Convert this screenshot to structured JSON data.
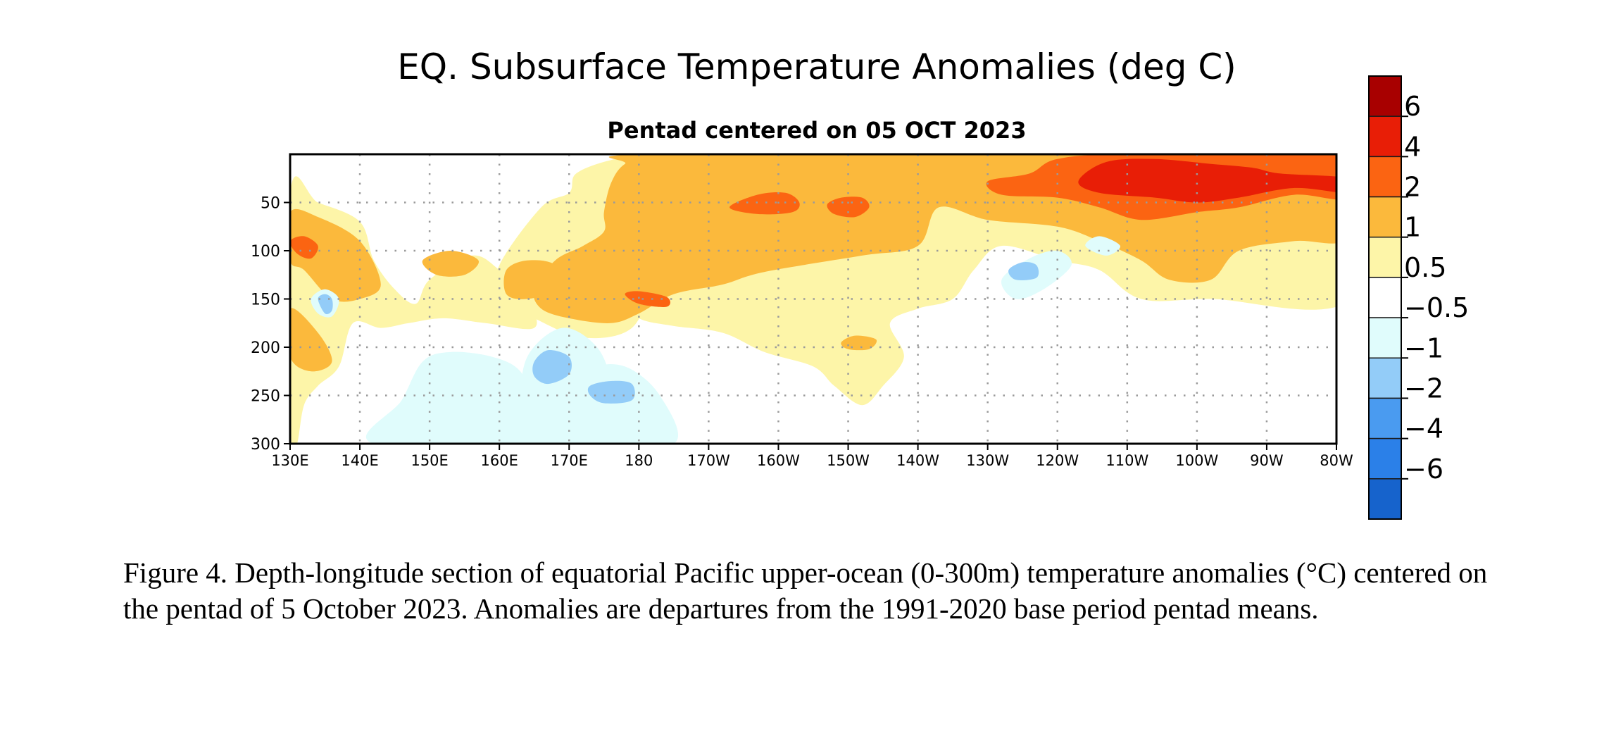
{
  "chart_data": {
    "type": "heatmap",
    "title": "EQ. Subsurface Temperature Anomalies (deg C)",
    "subtitle": "Pentad centered on 05 OCT 2023",
    "x_axis": {
      "ticks": [
        {
          "value": 130,
          "label": "130E"
        },
        {
          "value": 140,
          "label": "140E"
        },
        {
          "value": 150,
          "label": "150E"
        },
        {
          "value": 160,
          "label": "160E"
        },
        {
          "value": 170,
          "label": "170E"
        },
        {
          "value": 180,
          "label": "180"
        },
        {
          "value": 190,
          "label": "170W"
        },
        {
          "value": 200,
          "label": "160W"
        },
        {
          "value": 210,
          "label": "150W"
        },
        {
          "value": 220,
          "label": "140W"
        },
        {
          "value": 230,
          "label": "130W"
        },
        {
          "value": 240,
          "label": "120W"
        },
        {
          "value": 250,
          "label": "110W"
        },
        {
          "value": 260,
          "label": "100W"
        },
        {
          "value": 270,
          "label": "90W"
        },
        {
          "value": 280,
          "label": "80W"
        }
      ],
      "range": [
        130,
        280
      ]
    },
    "y_axis": {
      "ticks": [
        {
          "value": 50,
          "label": "50"
        },
        {
          "value": 100,
          "label": "100"
        },
        {
          "value": 150,
          "label": "150"
        },
        {
          "value": 200,
          "label": "200"
        },
        {
          "value": 250,
          "label": "250"
        },
        {
          "value": 300,
          "label": "300"
        }
      ],
      "range": [
        0,
        300
      ],
      "inverted": true
    },
    "grid": "dotted",
    "colorbar": {
      "placement": "right",
      "colors": [
        "#1663cc",
        "#2b80e8",
        "#4a9bf0",
        "#93ccf8",
        "#e0fcfc",
        "#ffffff",
        "#fdf5a8",
        "#fbb93c",
        "#fb6412",
        "#e81e06",
        "#a80000"
      ],
      "labels": [
        "−6",
        "−4",
        "−2",
        "−1",
        "−0.5",
        "0.5",
        "1",
        "2",
        "4",
        "6"
      ]
    },
    "regions": [
      {
        "level": 0.5,
        "points": [
          [
            177,
            120
          ],
          [
            176,
            40
          ],
          [
            178,
            18
          ],
          [
            181,
            0
          ],
          [
            228,
            0
          ],
          [
            282,
            0
          ],
          [
            282,
            150
          ],
          [
            262,
            150
          ],
          [
            252,
            150
          ],
          [
            246,
            120
          ],
          [
            240,
            110
          ],
          [
            232,
            95
          ],
          [
            228,
            120
          ],
          [
            225,
            150
          ],
          [
            220,
            160
          ],
          [
            216,
            175
          ],
          [
            218,
            210
          ],
          [
            215,
            240
          ],
          [
            212,
            260
          ],
          [
            208,
            240
          ],
          [
            205,
            220
          ],
          [
            198,
            205
          ],
          [
            192,
            185
          ],
          [
            185,
            178
          ],
          [
            180,
            170
          ],
          [
            178,
            150
          ]
        ]
      },
      {
        "level": 0.5,
        "points": [
          [
            160,
            115
          ],
          [
            166,
            55
          ],
          [
            170,
            40
          ],
          [
            171,
            20
          ],
          [
            176,
            6
          ],
          [
            182,
            1
          ],
          [
            186,
            50
          ],
          [
            183,
            100
          ],
          [
            182,
            130
          ],
          [
            179,
            180
          ],
          [
            172,
            190
          ],
          [
            165,
            170
          ],
          [
            160,
            150
          ]
        ]
      },
      {
        "level": 0.5,
        "points": [
          [
            130,
            40
          ],
          [
            134,
            50
          ],
          [
            140,
            70
          ],
          [
            142,
            110
          ],
          [
            145,
            140
          ],
          [
            148,
            155
          ],
          [
            150,
            130
          ],
          [
            156,
            105
          ],
          [
            160,
            120
          ],
          [
            164,
            150
          ],
          [
            165,
            180
          ],
          [
            158,
            175
          ],
          [
            152,
            170
          ],
          [
            147,
            175
          ],
          [
            143,
            180
          ],
          [
            139,
            175
          ],
          [
            137,
            220
          ],
          [
            134,
            240
          ],
          [
            132,
            260
          ],
          [
            131,
            300
          ],
          [
            130,
            300
          ]
        ]
      },
      {
        "level": 1,
        "points": [
          [
            175,
            60
          ],
          [
            176,
            30
          ],
          [
            178,
            10
          ],
          [
            182,
            0
          ],
          [
            250,
            0
          ],
          [
            282,
            0
          ],
          [
            282,
            85
          ],
          [
            274,
            90
          ],
          [
            266,
            100
          ],
          [
            262,
            130
          ],
          [
            256,
            130
          ],
          [
            252,
            110
          ],
          [
            246,
            90
          ],
          [
            240,
            75
          ],
          [
            230,
            68
          ],
          [
            223,
            55
          ],
          [
            220,
            95
          ],
          [
            212,
            105
          ],
          [
            198,
            122
          ],
          [
            192,
            135
          ],
          [
            185,
            145
          ],
          [
            180,
            165
          ],
          [
            176,
            175
          ],
          [
            170,
            170
          ],
          [
            166,
            160
          ],
          [
            165,
            140
          ],
          [
            168,
            110
          ],
          [
            172,
            95
          ],
          [
            175,
            80
          ]
        ]
      },
      {
        "level": 1,
        "points": [
          [
            161,
            120
          ],
          [
            164,
            110
          ],
          [
            168,
            115
          ],
          [
            168,
            140
          ],
          [
            164,
            150
          ],
          [
            161,
            145
          ]
        ]
      },
      {
        "level": 1,
        "points": [
          [
            130,
            60
          ],
          [
            134,
            65
          ],
          [
            140,
            90
          ],
          [
            143,
            135
          ],
          [
            140,
            150
          ],
          [
            136,
            150
          ],
          [
            132,
            120
          ],
          [
            130,
            110
          ]
        ]
      },
      {
        "level": 1,
        "points": [
          [
            130,
            160
          ],
          [
            134,
            185
          ],
          [
            136,
            215
          ],
          [
            133,
            225
          ],
          [
            130,
            210
          ]
        ]
      },
      {
        "level": 1,
        "points": [
          [
            149,
            110
          ],
          [
            153,
            100
          ],
          [
            157,
            110
          ],
          [
            155,
            125
          ],
          [
            151,
            125
          ]
        ]
      },
      {
        "level": 1,
        "points": [
          [
            209,
            195
          ],
          [
            211,
            188
          ],
          [
            214,
            192
          ],
          [
            213,
            202
          ],
          [
            210,
            202
          ]
        ]
      },
      {
        "level": 2,
        "points": [
          [
            230,
            28
          ],
          [
            236,
            20
          ],
          [
            240,
            5
          ],
          [
            250,
            0
          ],
          [
            282,
            0
          ],
          [
            282,
            45
          ],
          [
            274,
            42
          ],
          [
            266,
            55
          ],
          [
            260,
            60
          ],
          [
            252,
            68
          ],
          [
            246,
            55
          ],
          [
            240,
            45
          ],
          [
            232,
            42
          ]
        ]
      },
      {
        "level": 2,
        "points": [
          [
            193,
            55
          ],
          [
            197,
            42
          ],
          [
            201,
            40
          ],
          [
            203,
            50
          ],
          [
            202,
            60
          ],
          [
            197,
            62
          ]
        ]
      },
      {
        "level": 2,
        "points": [
          [
            207,
            52
          ],
          [
            209,
            45
          ],
          [
            212,
            45
          ],
          [
            213,
            55
          ],
          [
            211,
            65
          ],
          [
            208,
            62
          ]
        ]
      },
      {
        "level": 2,
        "points": [
          [
            130,
            90
          ],
          [
            132,
            85
          ],
          [
            134,
            95
          ],
          [
            133,
            108
          ],
          [
            131,
            103
          ]
        ]
      },
      {
        "level": 2,
        "points": [
          [
            178,
            145
          ],
          [
            180,
            142
          ],
          [
            184,
            148
          ],
          [
            184,
            158
          ],
          [
            180,
            155
          ]
        ]
      },
      {
        "level": 4,
        "points": [
          [
            243,
            28
          ],
          [
            247,
            8
          ],
          [
            254,
            5
          ],
          [
            262,
            10
          ],
          [
            268,
            14
          ],
          [
            272,
            20
          ],
          [
            282,
            25
          ],
          [
            282,
            40
          ],
          [
            274,
            35
          ],
          [
            266,
            45
          ],
          [
            260,
            50
          ],
          [
            254,
            45
          ],
          [
            246,
            40
          ]
        ]
      },
      {
        "level": -0.5,
        "points": [
          [
            232,
            130
          ],
          [
            236,
            108
          ],
          [
            240,
            100
          ],
          [
            242,
            115
          ],
          [
            238,
            140
          ],
          [
            234,
            150
          ]
        ]
      },
      {
        "level": -0.5,
        "points": [
          [
            244,
            95
          ],
          [
            246,
            85
          ],
          [
            249,
            95
          ],
          [
            247,
            105
          ]
        ]
      },
      {
        "level": -0.5,
        "points": [
          [
            142,
            300
          ],
          [
            146,
            255
          ],
          [
            149,
            215
          ],
          [
            153,
            205
          ],
          [
            159,
            210
          ],
          [
            163,
            225
          ],
          [
            165,
            260
          ],
          [
            168,
            300
          ]
        ]
      },
      {
        "level": -0.5,
        "points": [
          [
            163,
            265
          ],
          [
            164,
            210
          ],
          [
            169,
            180
          ],
          [
            174,
            200
          ],
          [
            176,
            240
          ],
          [
            175,
            280
          ],
          [
            172,
            300
          ],
          [
            164,
            300
          ]
        ]
      },
      {
        "level": -0.5,
        "points": [
          [
            170,
            270
          ],
          [
            173,
            225
          ],
          [
            178,
            220
          ],
          [
            183,
            250
          ],
          [
            185,
            300
          ],
          [
            172,
            300
          ]
        ]
      },
      {
        "level": -0.5,
        "points": [
          [
            133,
            150
          ],
          [
            135,
            140
          ],
          [
            137,
            150
          ],
          [
            136,
            168
          ],
          [
            134,
            165
          ]
        ]
      },
      {
        "level": -1,
        "points": [
          [
            233,
            120
          ],
          [
            235,
            112
          ],
          [
            237,
            115
          ],
          [
            237,
            128
          ],
          [
            234,
            130
          ]
        ]
      },
      {
        "level": -1,
        "points": [
          [
            165,
            215
          ],
          [
            167,
            203
          ],
          [
            170,
            210
          ],
          [
            170,
            228
          ],
          [
            167,
            238
          ],
          [
            165,
            230
          ]
        ]
      },
      {
        "level": -1,
        "points": [
          [
            173,
            240
          ],
          [
            176,
            235
          ],
          [
            179,
            238
          ],
          [
            179,
            255
          ],
          [
            175,
            258
          ],
          [
            173,
            250
          ]
        ]
      },
      {
        "level": -1,
        "points": [
          [
            134,
            150
          ],
          [
            135,
            145
          ],
          [
            136,
            150
          ],
          [
            136,
            162
          ],
          [
            135,
            165
          ]
        ]
      }
    ]
  },
  "caption": "Figure 4. Depth-longitude section of equatorial Pacific upper-ocean (0-300m) temperature anomalies (°C) centered on the pentad of 5 October 2023. Anomalies are departures from the 1991-2020 base period pentad means."
}
